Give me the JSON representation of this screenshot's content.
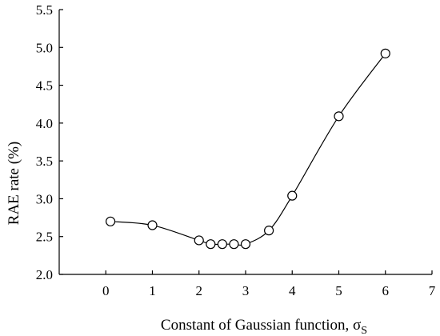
{
  "chart_data": {
    "type": "line",
    "xlabel": "Constant of Gaussian function, σ",
    "xlabel_subscript": "S",
    "ylabel": "RAE rate (%)",
    "xlim": [
      -1,
      7
    ],
    "ylim": [
      2.0,
      5.5
    ],
    "x_ticks": [
      0,
      1,
      2,
      3,
      4,
      5,
      6,
      7
    ],
    "x_tick_labels": [
      "0",
      "1",
      "2",
      "3",
      "4",
      "5",
      "6",
      "7"
    ],
    "y_ticks": [
      2.0,
      2.5,
      3.0,
      3.5,
      4.0,
      4.5,
      5.0,
      5.5
    ],
    "y_tick_labels": [
      "2.0",
      "2.5",
      "3.0",
      "3.5",
      "4.0",
      "4.5",
      "5.0",
      "5.5"
    ],
    "grid": false,
    "series": [
      {
        "x": [
          0.1,
          1.0,
          2.0,
          2.25,
          2.5,
          2.75,
          3.0,
          3.5,
          4.0,
          5.0,
          6.0
        ],
        "y": [
          2.7,
          2.65,
          2.45,
          2.4,
          2.4,
          2.4,
          2.4,
          2.58,
          3.04,
          4.09,
          4.92
        ],
        "marker": "open-circle",
        "line": "smooth"
      }
    ]
  }
}
